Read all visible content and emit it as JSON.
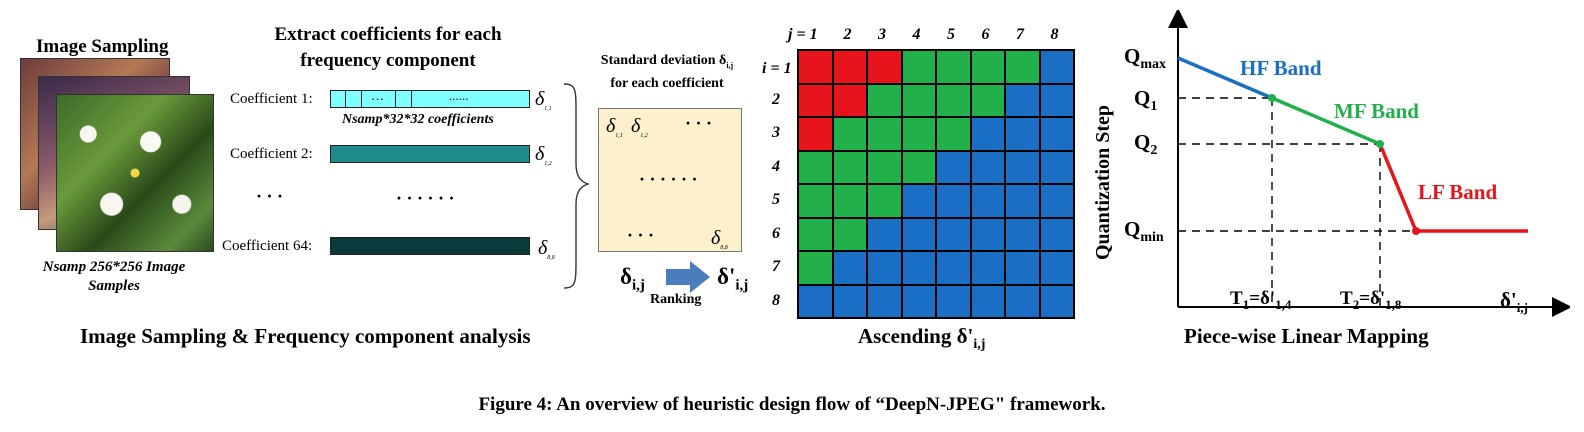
{
  "section1": {
    "title": "Image Sampling",
    "caption_line1": "Nsamp 256*256 Image",
    "caption_line2": "Samples"
  },
  "section2": {
    "title_line1": "Extract coefficients for each",
    "title_line2": "frequency component",
    "coef1_label": "Coefficient 1:",
    "coef1_inner_dots": "…",
    "coef1_inner_dots2": "......",
    "coef1_sub": "Nsamp*32*32 coefficients",
    "coef2_label": "Coefficient 2:",
    "left_dots": "· · ·",
    "mid_dots": "· · · · · ·",
    "coef64_label": "Coefficient 64:",
    "sigma_1_1": "1,1",
    "sigma_1_2": "1,2",
    "sigma_8_8": "8,8",
    "sigma_symbol": "δ"
  },
  "section3": {
    "title_line1": "Standard deviation δ",
    "title_sub": "i,j",
    "title_line2": "for each coefficient",
    "box_dots_top": "· · ·",
    "box_dots_mid": "· · · · · ·",
    "box_dots_bottom": "· · ·",
    "rank_from": "δ",
    "rank_from_sub": "i,j",
    "rank_to": "δ'",
    "rank_to_sub": "i,j",
    "ranking_label": "Ranking"
  },
  "grid": {
    "col_header_first": "j = 1",
    "row_header_first": "i = 1",
    "col_headers": [
      "2",
      "3",
      "4",
      "5",
      "6",
      "7",
      "8"
    ],
    "row_headers": [
      "2",
      "3",
      "4",
      "5",
      "6",
      "7",
      "8"
    ],
    "colors": {
      "R": "#e8141c",
      "G": "#22b04a",
      "B": "#1a6fc4"
    },
    "rows": [
      "RRRGGGGB",
      "RRGGGGBB",
      "RGGGGBBB",
      "GGGGBBBB",
      "GGGBBBBB",
      "GGBBBBBB",
      "GBBBBBBB",
      "BBBBBBBB"
    ],
    "caption": "Ascending δ'",
    "caption_sub": "i,j"
  },
  "mapping": {
    "ylabel": "Quantization Step",
    "q_max": "Q",
    "q_max_sub": "max",
    "q1": "Q",
    "q1_sub": "1",
    "q2": "Q",
    "q2_sub": "2",
    "q_min": "Q",
    "q_min_sub": "min",
    "hf_label": "HF Band",
    "mf_label": "MF Band",
    "lf_label": "LF Band",
    "t1": "T",
    "t1_sub": "1",
    "t1_eq": "=δ'",
    "t1_eq_sub": "1,4",
    "t2": "T",
    "t2_sub": "2",
    "t2_eq": "=δ'",
    "t2_eq_sub": "1,8",
    "xlabel": "δ'",
    "xlabel_sub": "i,j",
    "caption": "Piece-wise Linear Mapping",
    "colors": {
      "hf": "#1a6fc4",
      "mf": "#22b04a",
      "lf": "#e8141c"
    }
  },
  "captions": {
    "left": "Image Sampling & Frequency component analysis",
    "figure": "Figure 4: An overview of heuristic design flow of “DeepN-JPEG\" framework."
  }
}
